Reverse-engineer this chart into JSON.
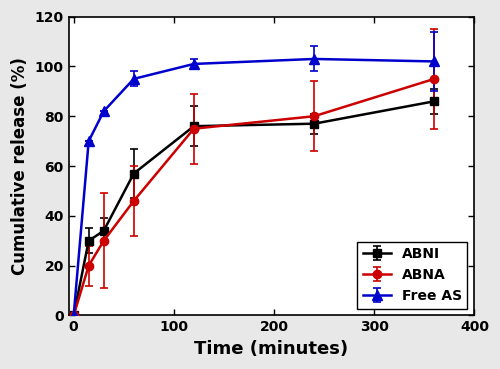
{
  "title": "",
  "xlabel": "Time (minutes)",
  "ylabel": "Cumulative release (%)",
  "xlim": [
    -5,
    400
  ],
  "ylim": [
    0,
    120
  ],
  "xticks": [
    0,
    100,
    200,
    300,
    400
  ],
  "yticks": [
    0,
    20,
    40,
    60,
    80,
    100,
    120
  ],
  "series": {
    "ABNI": {
      "x": [
        0,
        15,
        30,
        60,
        120,
        240,
        360
      ],
      "y": [
        0,
        30,
        34,
        57,
        76,
        77,
        86
      ],
      "yerr": [
        0,
        5,
        5,
        10,
        8,
        4,
        5
      ],
      "color": "#000000",
      "marker": "s",
      "markersize": 6,
      "linewidth": 1.8
    },
    "ABNA": {
      "x": [
        0,
        15,
        30,
        60,
        120,
        240,
        360
      ],
      "y": [
        0,
        20,
        30,
        46,
        75,
        80,
        95
      ],
      "yerr": [
        0,
        8,
        19,
        14,
        14,
        14,
        20
      ],
      "color": "#cc0000",
      "marker": "o",
      "markersize": 6,
      "linewidth": 1.8
    },
    "Free AS": {
      "x": [
        0,
        15,
        30,
        60,
        120,
        240,
        360
      ],
      "y": [
        0,
        70,
        82,
        95,
        101,
        103,
        102
      ],
      "yerr": [
        0,
        0,
        0,
        3,
        2,
        5,
        12
      ],
      "color": "#0000cc",
      "marker": "^",
      "markersize": 7,
      "linewidth": 1.8
    }
  },
  "legend_loc": "lower right",
  "legend_fontsize": 10,
  "xlabel_fontsize": 13,
  "ylabel_fontsize": 12,
  "tick_fontsize": 10,
  "fig_facecolor": "#e8e8e8",
  "plot_facecolor": "#ffffff"
}
